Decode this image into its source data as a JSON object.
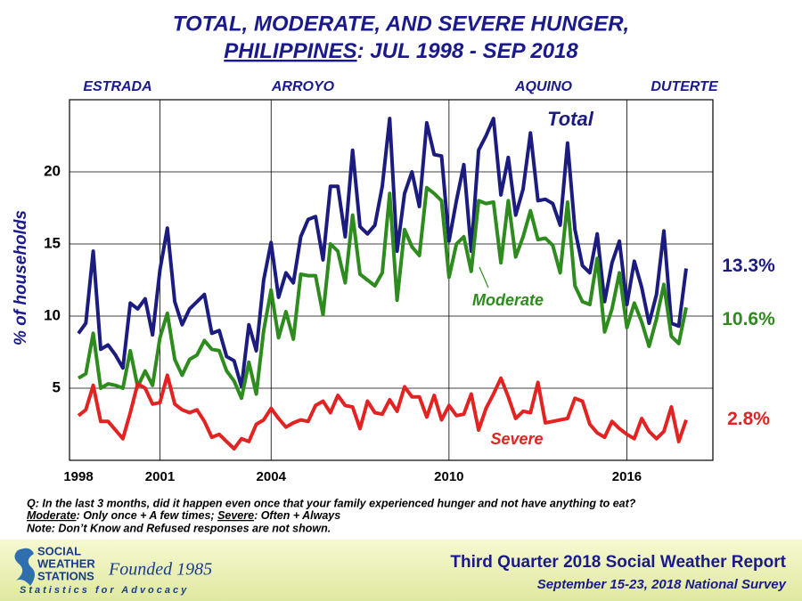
{
  "chart_data": {
    "type": "line",
    "title": "TOTAL, MODERATE, AND SEVERE HUNGER,",
    "title_line2": {
      "underlined": "PHILIPPINES",
      "rest": ": JUL 1998 - SEP 2018"
    },
    "annotations": [
      "ESTRADA",
      "ARROYO",
      "AQUINO",
      "DUTERTE"
    ],
    "y_label": "% of households",
    "categories": [
      "1998",
      null,
      null,
      null,
      null,
      null,
      null,
      null,
      null,
      null,
      null,
      "2001",
      null,
      null,
      null,
      null,
      null,
      null,
      null,
      null,
      null,
      null,
      null,
      null,
      null,
      null,
      "2004",
      null,
      null,
      null,
      null,
      null,
      null,
      null,
      null,
      null,
      null,
      null,
      null,
      null,
      null,
      null,
      null,
      null,
      null,
      null,
      null,
      null,
      null,
      null,
      "2010",
      null,
      null,
      null,
      null,
      null,
      null,
      null,
      null,
      null,
      null,
      null,
      null,
      null,
      null,
      null,
      null,
      null,
      null,
      null,
      null,
      null,
      null,
      null,
      "2016",
      null,
      null,
      null,
      null,
      null,
      null,
      null,
      null
    ],
    "ylim": [
      0,
      25
    ],
    "yticks": [
      5,
      10,
      15,
      20
    ],
    "grid": true,
    "series": [
      {
        "name": "Total",
        "color": "#1c1c80",
        "values": [
          8.8,
          9.5,
          14.5,
          7.7,
          8.0,
          7.3,
          6.4,
          10.9,
          10.5,
          11.2,
          8.7,
          13.2,
          16.1,
          11.0,
          9.4,
          10.5,
          11.0,
          11.5,
          8.8,
          9.0,
          7.2,
          6.9,
          5.1,
          9.4,
          7.6,
          12.5,
          15.1,
          11.3,
          13.0,
          12.3,
          15.5,
          16.7,
          16.9,
          13.9,
          19.0,
          19.0,
          15.5,
          21.5,
          16.2,
          15.7,
          16.3,
          19.0,
          23.7,
          14.5,
          18.5,
          20.0,
          17.6,
          23.4,
          21.2,
          21.1,
          15.2,
          18.0,
          20.5,
          14.5,
          21.5,
          22.5,
          23.7,
          18.4,
          21.0,
          17.0,
          18.8,
          22.7,
          18.0,
          18.1,
          17.8,
          16.3,
          22.0,
          16.0,
          13.5,
          13.0,
          15.7,
          11.0,
          13.7,
          15.2,
          10.8,
          13.8,
          12.0,
          9.5,
          11.5,
          15.9,
          9.5,
          9.3,
          13.3
        ],
        "value_labels": [
          null,
          null,
          null,
          null,
          null,
          null,
          null,
          null,
          null,
          null,
          null,
          null,
          null,
          null,
          null,
          null,
          null,
          null,
          null,
          null,
          null,
          null,
          null,
          null,
          null,
          null,
          null,
          null,
          null,
          null,
          null,
          null,
          null,
          null,
          null,
          null,
          null,
          null,
          null,
          null,
          null,
          null,
          null,
          null,
          null,
          null,
          null,
          null,
          null,
          null,
          null,
          null,
          null,
          null,
          null,
          null,
          null,
          null,
          null,
          null,
          null,
          null,
          null,
          null,
          null,
          null,
          null,
          null,
          null,
          null,
          null,
          null,
          null,
          null,
          null,
          null,
          null,
          null,
          null,
          null,
          null,
          null,
          "13.3%"
        ]
      },
      {
        "name": "Moderate",
        "color": "#2e8b1e",
        "values": [
          5.7,
          6.0,
          8.8,
          5.0,
          5.3,
          5.2,
          5.0,
          7.6,
          5.1,
          6.2,
          5.2,
          8.5,
          10.2,
          7.0,
          5.9,
          7.0,
          7.3,
          8.3,
          7.7,
          7.6,
          6.2,
          5.5,
          4.3,
          6.8,
          4.6,
          9.0,
          11.8,
          8.5,
          10.3,
          8.4,
          12.9,
          12.8,
          12.8,
          10.1,
          15.0,
          14.5,
          12.3,
          17.0,
          12.9,
          12.5,
          12.1,
          13.0,
          18.5,
          11.1,
          16.0,
          14.8,
          14.2,
          18.9,
          18.5,
          18.0,
          12.7,
          15.0,
          15.5,
          13.1,
          18.0,
          17.8,
          17.9,
          13.7,
          18.0,
          14.1,
          15.5,
          17.3,
          15.3,
          15.4,
          14.9,
          13.0,
          17.9,
          12.1,
          11.0,
          10.8,
          14.0,
          8.9,
          10.5,
          13.0,
          9.2,
          10.9,
          9.6,
          7.9,
          9.8,
          12.2,
          8.6,
          8.1,
          10.6
        ],
        "value_labels": [
          null,
          null,
          null,
          null,
          null,
          null,
          null,
          null,
          null,
          null,
          null,
          null,
          null,
          null,
          null,
          null,
          null,
          null,
          null,
          null,
          null,
          null,
          null,
          null,
          null,
          null,
          null,
          null,
          null,
          null,
          null,
          null,
          null,
          null,
          null,
          null,
          null,
          null,
          null,
          null,
          null,
          null,
          null,
          null,
          null,
          null,
          null,
          null,
          null,
          null,
          null,
          null,
          null,
          null,
          null,
          null,
          null,
          null,
          null,
          null,
          null,
          null,
          null,
          null,
          null,
          null,
          null,
          null,
          null,
          null,
          null,
          null,
          null,
          null,
          null,
          null,
          null,
          null,
          null,
          null,
          null,
          null,
          "10.6%"
        ]
      },
      {
        "name": "Severe",
        "color": "#e32222",
        "values": [
          3.1,
          3.5,
          5.2,
          2.7,
          2.7,
          2.1,
          1.5,
          3.3,
          5.3,
          5.0,
          3.9,
          4.0,
          5.9,
          3.9,
          3.5,
          3.3,
          3.5,
          2.7,
          1.6,
          1.8,
          1.3,
          0.8,
          1.5,
          1.3,
          2.5,
          2.8,
          3.6,
          2.9,
          2.3,
          2.6,
          2.8,
          2.7,
          3.8,
          4.1,
          3.3,
          4.5,
          3.8,
          3.7,
          2.2,
          4.1,
          3.3,
          3.2,
          4.2,
          3.4,
          5.1,
          4.4,
          4.4,
          3.0,
          4.5,
          2.8,
          3.8,
          3.1,
          3.2,
          4.6,
          2.1,
          3.6,
          4.6,
          5.7,
          4.4,
          2.9,
          3.4,
          3.3,
          5.4,
          2.6,
          2.7,
          2.8,
          2.9,
          4.3,
          4.1,
          2.5,
          1.9,
          1.6,
          2.7,
          2.2,
          1.8,
          1.5,
          2.9,
          2.0,
          1.5,
          2.0,
          3.7,
          1.3,
          2.8
        ],
        "value_labels": [
          null,
          null,
          null,
          null,
          null,
          null,
          null,
          null,
          null,
          null,
          null,
          null,
          null,
          null,
          null,
          null,
          null,
          null,
          null,
          null,
          null,
          null,
          null,
          null,
          null,
          null,
          null,
          null,
          null,
          null,
          null,
          null,
          null,
          null,
          null,
          null,
          null,
          null,
          null,
          null,
          null,
          null,
          null,
          null,
          null,
          null,
          null,
          null,
          null,
          null,
          null,
          null,
          null,
          null,
          null,
          null,
          null,
          null,
          null,
          null,
          null,
          null,
          null,
          null,
          null,
          null,
          null,
          null,
          null,
          null,
          null,
          null,
          null,
          null,
          null,
          null,
          null,
          null,
          null,
          null,
          null,
          null,
          "2.8%"
        ]
      }
    ]
  },
  "footnotes": {
    "question": "Q: In the last 3 months, did it happen even once that your family experienced hunger and not have anything to eat?",
    "moderate_term": "Moderate",
    "moderate_def": ": Only once + A few times; ",
    "severe_term": "Severe",
    "severe_def": ": Often + Always",
    "note": "Note: Don’t Know and Refused responses are not shown."
  },
  "footer": {
    "org_lines": [
      "SOCIAL",
      "WEATHER",
      "STATIONS"
    ],
    "founded": "Founded 1985",
    "tagline": "Statistics for Advocacy",
    "report": "Third Quarter 2018 Social Weather Report",
    "survey": "September 15-23, 2018 National Survey"
  }
}
